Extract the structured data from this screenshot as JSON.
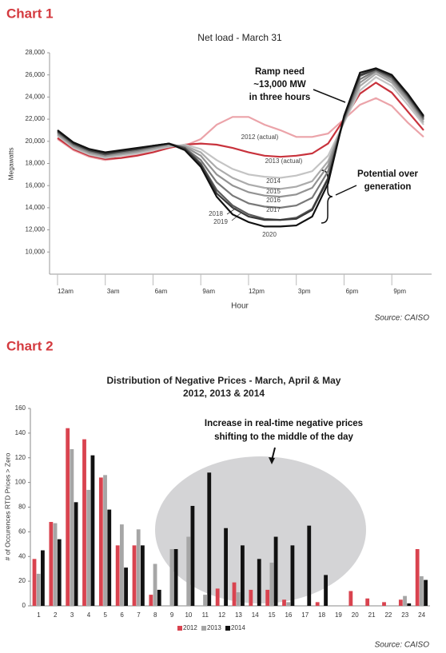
{
  "chart_data": [
    {
      "type": "line",
      "heading": "Chart 1",
      "title": "Net load - March 31",
      "x_label": "Hour",
      "y_label": "Megawatts",
      "source": "Source: CAISO",
      "annotations": [
        [
          "Ramp need",
          "~13,000 MW",
          "in three hours"
        ],
        [
          "Potential over",
          "generation"
        ]
      ],
      "x": [
        0,
        1,
        2,
        3,
        4,
        5,
        6,
        7,
        8,
        9,
        10,
        11,
        12,
        13,
        14,
        15,
        16,
        17,
        18,
        19,
        20,
        21,
        22,
        23
      ],
      "xlim": [
        -0.5,
        23.5
      ],
      "xticks": [
        {
          "value": 0,
          "label": "12am"
        },
        {
          "value": 3,
          "label": "3am"
        },
        {
          "value": 6,
          "label": "6am"
        },
        {
          "value": 9,
          "label": "9am"
        },
        {
          "value": 12,
          "label": "12pm"
        },
        {
          "value": 15,
          "label": "3pm"
        },
        {
          "value": 18,
          "label": "6pm"
        },
        {
          "value": 21,
          "label": "9pm"
        }
      ],
      "ylim": [
        8000,
        28000
      ],
      "yticks": [
        {
          "value": 10000,
          "label": "10,000"
        },
        {
          "value": 12000,
          "label": "12,000"
        },
        {
          "value": 14000,
          "label": "14,000"
        },
        {
          "value": 16000,
          "label": "16,000"
        },
        {
          "value": 18000,
          "label": "18,000"
        },
        {
          "value": 20000,
          "label": "20,000"
        },
        {
          "value": 22000,
          "label": "22,000"
        },
        {
          "value": 24000,
          "label": "24,000"
        },
        {
          "value": 26000,
          "label": "26,000"
        },
        {
          "value": 28000,
          "label": "28,000"
        }
      ],
      "grid": false,
      "series": [
        {
          "name": "2012 (actual)",
          "color": "#eba3a9",
          "values": [
            20200,
            19200,
            18600,
            18300,
            18500,
            18800,
            19200,
            19500,
            19600,
            20200,
            21500,
            22200,
            22200,
            21500,
            21000,
            20400,
            20400,
            20700,
            22000,
            23300,
            23900,
            23200,
            21700,
            20400
          ]
        },
        {
          "name": "2013 (actual)",
          "color": "#c8323c",
          "values": [
            20300,
            19300,
            18700,
            18400,
            18500,
            18700,
            19000,
            19400,
            19700,
            19800,
            19700,
            19400,
            19000,
            18700,
            18600,
            18700,
            18900,
            19800,
            22000,
            24300,
            25300,
            24400,
            22700,
            21000
          ]
        },
        {
          "name": "2014",
          "color": "#c4c4c4",
          "values": [
            20500,
            19400,
            18800,
            18500,
            18700,
            18900,
            19200,
            19500,
            19700,
            19300,
            18300,
            17500,
            17000,
            16800,
            16700,
            16900,
            17300,
            18700,
            21700,
            24600,
            25800,
            25000,
            23300,
            21500
          ]
        },
        {
          "name": "2015",
          "color": "#ababab",
          "values": [
            20600,
            19500,
            18900,
            18600,
            18800,
            19000,
            19300,
            19600,
            19600,
            19000,
            17600,
            16700,
            16100,
            15800,
            15700,
            15900,
            16400,
            18200,
            21800,
            25000,
            26100,
            25300,
            23600,
            21700
          ]
        },
        {
          "name": "2016",
          "color": "#939393",
          "values": [
            20700,
            19600,
            19000,
            18700,
            18900,
            19100,
            19400,
            19700,
            19500,
            18700,
            17000,
            16000,
            15400,
            15100,
            15000,
            15200,
            15800,
            17800,
            21900,
            25300,
            26300,
            25500,
            23800,
            21900
          ]
        },
        {
          "name": "2017",
          "color": "#787878",
          "values": [
            20800,
            19700,
            19100,
            18800,
            19000,
            19200,
            19500,
            19800,
            19400,
            18300,
            16300,
            15100,
            14400,
            14100,
            14000,
            14200,
            14900,
            17300,
            22000,
            25600,
            26400,
            25700,
            24000,
            22000
          ]
        },
        {
          "name": "2018",
          "color": "#5a5a5a",
          "values": [
            20900,
            19800,
            19200,
            18800,
            19100,
            19300,
            19500,
            19800,
            19400,
            18000,
            15600,
            14200,
            13400,
            13000,
            12900,
            13100,
            13900,
            16700,
            22100,
            25900,
            26500,
            25800,
            24100,
            22100
          ]
        },
        {
          "name": "2019",
          "color": "#3a3a3a",
          "values": [
            20900,
            19800,
            19200,
            18900,
            19100,
            19300,
            19600,
            19800,
            19300,
            17900,
            15300,
            14000,
            13200,
            12900,
            12900,
            13000,
            13800,
            16600,
            22200,
            26000,
            26500,
            25900,
            24200,
            22200
          ]
        },
        {
          "name": "2020",
          "color": "#111111",
          "values": [
            21000,
            19900,
            19300,
            19000,
            19200,
            19400,
            19600,
            19800,
            19200,
            17700,
            15000,
            13400,
            12700,
            12300,
            12300,
            12400,
            13200,
            16200,
            22300,
            26200,
            26600,
            26000,
            24300,
            22300
          ]
        }
      ]
    },
    {
      "type": "bar",
      "heading": "Chart 2",
      "title": "Distribution of Negative Prices - March, April & May",
      "subtitle": "2012, 2013 & 2014",
      "y_label": "# of Occurences RTD Prices > Zero",
      "source": "Source: CAISO",
      "annotations": [
        [
          "Increase in real-time negative prices",
          "shifting to the middle of the day"
        ]
      ],
      "categories": [
        "1",
        "2",
        "3",
        "4",
        "5",
        "6",
        "7",
        "8",
        "9",
        "10",
        "11",
        "12",
        "13",
        "14",
        "15",
        "16",
        "17",
        "18",
        "19",
        "20",
        "21",
        "22",
        "23",
        "24"
      ],
      "ylim": [
        0,
        160
      ],
      "yticks": [
        0,
        20,
        40,
        60,
        80,
        100,
        120,
        140,
        160
      ],
      "grid": false,
      "series": [
        {
          "name": "2012",
          "color": "#d9434f",
          "values": [
            38,
            68,
            144,
            135,
            104,
            49,
            49,
            9,
            0,
            0,
            0,
            14,
            19,
            13,
            13,
            5,
            0,
            3,
            0,
            12,
            6,
            3,
            5,
            46
          ]
        },
        {
          "name": "2013",
          "color": "#a6a6a6",
          "values": [
            26,
            67,
            127,
            94,
            106,
            66,
            62,
            34,
            46,
            56,
            9,
            0,
            11,
            0,
            35,
            3,
            0,
            0,
            0,
            0,
            0,
            0,
            8,
            24
          ]
        },
        {
          "name": "2014",
          "color": "#111111",
          "values": [
            45,
            54,
            84,
            122,
            78,
            31,
            49,
            13,
            46,
            81,
            108,
            63,
            49,
            38,
            56,
            49,
            65,
            25,
            0,
            0,
            0,
            0,
            2,
            21
          ]
        }
      ]
    }
  ]
}
